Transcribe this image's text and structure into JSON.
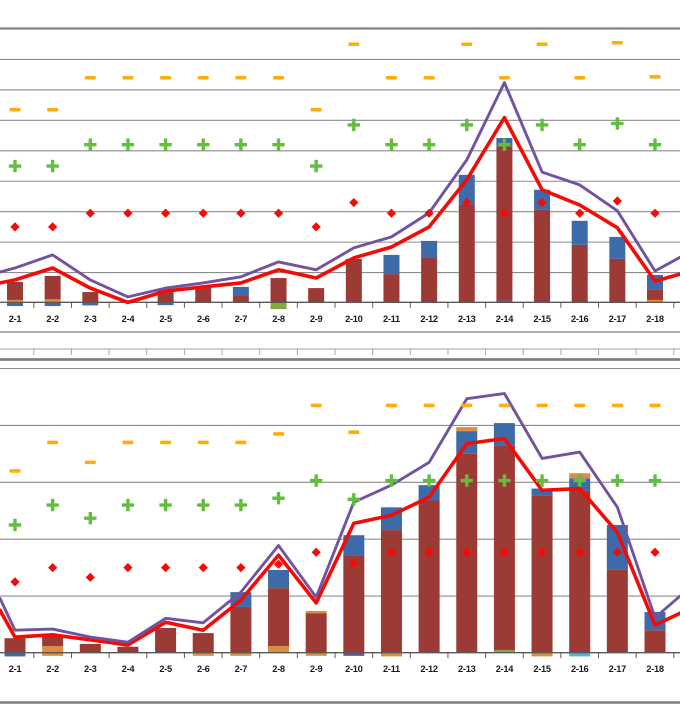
{
  "page": {
    "background": "#FFFFFF",
    "description": "Cropped view of two stacked-column / line combo charts, one above the other; y-axis value labels are cropped out of view."
  },
  "colors": {
    "bar_maroon": "#9C3A36",
    "bar_blue": "#3D6AA8",
    "bar_orange": "#DC8D3E",
    "bar_green": "#84A93F",
    "bar_purple": "#6B5294",
    "bar_teal": "#4FB6D8",
    "line_red": "#F50B06",
    "line_purple": "#71549F",
    "marker_orange_dash": "#FFAF04",
    "marker_green_plus": "#62BE3C",
    "marker_red_diamond": "#F50B06",
    "gridline": "#8C8C8C",
    "axis": "#595959",
    "frame": "#7F7F7F",
    "label": "#1A1A1A"
  },
  "chart_data": [
    {
      "id": "top-chart",
      "type": "bar",
      "subtype": "stacked-columns-with-lines-and-scatter-markers",
      "title": "",
      "xlabel": "",
      "ylabel": "",
      "note": "y values are in gridline units (numeric axis labels cropped out of screenshot); bars are stacked segments, negatives hang below the axis",
      "categories": [
        "2-1",
        "2-2",
        "2-3",
        "2-4",
        "2-5",
        "2-6",
        "2-7",
        "2-8",
        "2-9",
        "2-10",
        "2-11",
        "2-12",
        "2-13",
        "2-14",
        "2-15",
        "2-16",
        "2-17",
        "2-18"
      ],
      "ylim_units": [
        0,
        9
      ],
      "gridline_rows": 10,
      "grid": true,
      "legend": "not visible (cropped)",
      "series": [
        {
          "name": "orange-dash-markers",
          "type": "scatter",
          "marker": "dash",
          "color": "#FFAF04",
          "values": [
            6.35,
            6.35,
            7.4,
            7.4,
            7.4,
            7.4,
            7.4,
            7.4,
            6.35,
            8.5,
            7.4,
            7.4,
            8.5,
            7.4,
            8.5,
            7.4,
            8.55,
            7.43
          ]
        },
        {
          "name": "green-plus-markers",
          "type": "scatter",
          "marker": "plus",
          "color": "#62BE3C",
          "values": [
            4.5,
            4.5,
            5.2,
            5.2,
            5.2,
            5.2,
            5.2,
            5.2,
            4.5,
            5.85,
            5.2,
            5.2,
            5.85,
            5.2,
            5.85,
            5.2,
            5.9,
            5.2
          ]
        },
        {
          "name": "red-diamond-markers",
          "type": "scatter",
          "marker": "diamond",
          "color": "#F50B06",
          "values": [
            2.5,
            2.5,
            2.95,
            2.95,
            2.95,
            2.95,
            2.95,
            2.95,
            2.5,
            3.3,
            2.95,
            2.95,
            3.3,
            2.95,
            3.3,
            2.95,
            3.35,
            2.95
          ]
        },
        {
          "name": "red-line",
          "type": "line",
          "color": "#F50B06",
          "edge_left": 0.66,
          "edge_right": 0.95,
          "values": [
            0.76,
            1.15,
            0.49,
            0.02,
            0.39,
            0.53,
            0.66,
            1.09,
            0.82,
            1.48,
            1.84,
            2.5,
            4.05,
            6.09,
            3.72,
            3.22,
            2.47,
            0.72
          ]
        },
        {
          "name": "purple-line",
          "type": "line",
          "color": "#71549F",
          "edge_left": 1.02,
          "edge_right": 1.5,
          "values": [
            1.15,
            1.58,
            0.76,
            0.2,
            0.49,
            0.66,
            0.86,
            1.35,
            1.09,
            1.81,
            2.17,
            2.96,
            4.7,
            7.24,
            4.3,
            3.88,
            3.03,
            1.05
          ]
        },
        {
          "name": "stacked-bars",
          "type": "bar",
          "segments": [
            [
              [
                "blue",
                -0.1,
                0
              ],
              [
                "orange",
                0,
                0.1
              ],
              [
                "maroon",
                0.1,
                0.69
              ]
            ],
            [
              [
                "blue",
                -0.1,
                0
              ],
              [
                "orange",
                0,
                0.12
              ],
              [
                "maroon",
                0.12,
                0.89
              ]
            ],
            [
              [
                "blue",
                -0.08,
                0
              ],
              [
                "maroon",
                0,
                0.36
              ]
            ],
            [],
            [
              [
                "blue",
                -0.07,
                0
              ],
              [
                "maroon",
                0,
                0.43
              ]
            ],
            [
              [
                "maroon",
                0,
                0.49
              ]
            ],
            [
              [
                "maroon",
                0,
                0.26
              ],
              [
                "blue",
                0.26,
                0.53
              ]
            ],
            [
              [
                "green",
                -0.2,
                0
              ],
              [
                "maroon",
                0,
                0.82
              ]
            ],
            [
              [
                "maroon",
                0,
                0.49
              ]
            ],
            [
              [
                "maroon",
                0,
                1.45
              ]
            ],
            [
              [
                "maroon",
                0,
                0.95
              ],
              [
                "blue",
                0.95,
                1.58
              ]
            ],
            [
              [
                "maroon",
                0,
                1.48
              ],
              [
                "blue",
                1.48,
                2.04
              ]
            ],
            [
              [
                "maroon",
                0,
                3.22
              ],
              [
                "blue",
                3.22,
                4.21
              ]
            ],
            [
              [
                "purple",
                0,
                0.08
              ],
              [
                "maroon",
                0.08,
                5.15
              ],
              [
                "blue",
                5.15,
                5.42
              ]
            ],
            [
              [
                "maroon",
                0,
                3.06
              ],
              [
                "blue",
                3.06,
                3.72
              ]
            ],
            [
              [
                "maroon",
                0,
                1.91
              ],
              [
                "blue",
                1.91,
                2.7
              ]
            ],
            [
              [
                "maroon",
                0,
                1.45
              ],
              [
                "blue",
                1.45,
                2.17
              ]
            ],
            [
              [
                "orange",
                0,
                0.1
              ],
              [
                "maroon",
                0.1,
                0.43
              ],
              [
                "blue",
                0.43,
                0.92
              ]
            ]
          ]
        }
      ]
    },
    {
      "id": "bottom-chart",
      "type": "bar",
      "subtype": "stacked-columns-with-lines-and-scatter-markers",
      "title": "",
      "xlabel": "",
      "ylabel": "",
      "note": "y values are in gridline units (numeric axis labels cropped out of screenshot)",
      "categories": [
        "2-1",
        "2-2",
        "2-3",
        "2-4",
        "2-5",
        "2-6",
        "2-7",
        "2-8",
        "2-9",
        "2-10",
        "2-11",
        "2-12",
        "2-13",
        "2-14",
        "2-15",
        "2-16",
        "2-17",
        "2-18"
      ],
      "ylim_units": [
        0,
        5
      ],
      "gridline_rows": 6,
      "grid": true,
      "legend": "not visible (cropped)",
      "series": [
        {
          "name": "orange-dash-markers",
          "type": "scatter",
          "marker": "dash",
          "color": "#FFAF04",
          "values": [
            3.2,
            3.7,
            3.35,
            3.7,
            3.7,
            3.7,
            3.7,
            3.85,
            4.35,
            3.88,
            4.35,
            4.35,
            4.35,
            4.35,
            4.35,
            4.35,
            4.35,
            4.35
          ]
        },
        {
          "name": "green-plus-markers",
          "type": "scatter",
          "marker": "plus",
          "color": "#62BE3C",
          "values": [
            2.25,
            2.6,
            2.37,
            2.6,
            2.6,
            2.6,
            2.6,
            2.72,
            3.03,
            2.7,
            3.03,
            3.03,
            3.03,
            3.03,
            3.03,
            3.03,
            3.03,
            3.03
          ]
        },
        {
          "name": "red-diamond-markers",
          "type": "scatter",
          "marker": "diamond",
          "color": "#F50B06",
          "values": [
            1.25,
            1.5,
            1.33,
            1.5,
            1.5,
            1.5,
            1.5,
            1.56,
            1.77,
            1.58,
            1.77,
            1.77,
            1.77,
            1.77,
            1.77,
            1.77,
            1.77,
            1.77
          ]
        },
        {
          "name": "red-line",
          "type": "line",
          "color": "#F50B06",
          "edge_left": 0.75,
          "edge_right": 0.7,
          "values": [
            0.28,
            0.32,
            0.23,
            0.14,
            0.54,
            0.4,
            0.93,
            1.72,
            0.88,
            2.28,
            2.42,
            2.74,
            3.68,
            3.77,
            2.86,
            2.89,
            2.12,
            0.49
          ]
        },
        {
          "name": "purple-line",
          "type": "line",
          "color": "#71549F",
          "edge_left": 0.96,
          "edge_right": 1.0,
          "values": [
            0.4,
            0.42,
            0.28,
            0.19,
            0.61,
            0.53,
            1.07,
            1.89,
            0.98,
            2.65,
            2.95,
            3.35,
            4.47,
            4.56,
            3.42,
            3.53,
            2.56,
            0.62
          ]
        },
        {
          "name": "stacked-bars",
          "type": "bar",
          "segments": [
            [
              [
                "blue",
                -0.06,
                0
              ],
              [
                "maroon",
                0,
                0.26
              ]
            ],
            [
              [
                "orange",
                -0.05,
                0.12
              ],
              [
                "maroon",
                0.12,
                0.3
              ]
            ],
            [
              [
                "maroon",
                0,
                0.16
              ]
            ],
            [
              [
                "maroon",
                0,
                0.11
              ]
            ],
            [
              [
                "maroon",
                0,
                0.44
              ]
            ],
            [
              [
                "orange",
                -0.05,
                0
              ],
              [
                "maroon",
                0,
                0.35
              ]
            ],
            [
              [
                "orange",
                -0.05,
                0
              ],
              [
                "maroon",
                0,
                0.81
              ],
              [
                "blue",
                0.81,
                1.07
              ]
            ],
            [
              [
                "orange",
                0,
                0.12
              ],
              [
                "maroon",
                0.12,
                1.14
              ],
              [
                "blue",
                1.14,
                1.46
              ]
            ],
            [
              [
                "orange",
                -0.05,
                0
              ],
              [
                "maroon",
                0,
                0.7
              ],
              [
                "orange",
                0.7,
                0.74
              ]
            ],
            [
              [
                "purple",
                -0.05,
                0
              ],
              [
                "maroon",
                0,
                1.72
              ],
              [
                "blue",
                1.72,
                2.07
              ]
            ],
            [
              [
                "orange",
                -0.06,
                0
              ],
              [
                "maroon",
                0,
                2.16
              ],
              [
                "blue",
                2.16,
                2.56
              ]
            ],
            [
              [
                "maroon",
                0,
                2.68
              ],
              [
                "blue",
                2.68,
                2.95
              ]
            ],
            [
              [
                "maroon",
                0,
                3.5
              ],
              [
                "blue",
                3.5,
                3.9
              ],
              [
                "orange",
                3.9,
                3.97
              ]
            ],
            [
              [
                "green",
                0,
                0.05
              ],
              [
                "maroon",
                0.05,
                3.65
              ],
              [
                "blue",
                3.65,
                4.04
              ]
            ],
            [
              [
                "orange",
                -0.06,
                0
              ],
              [
                "maroon",
                0,
                2.77
              ],
              [
                "blue",
                2.77,
                2.89
              ]
            ],
            [
              [
                "teal",
                -0.06,
                0
              ],
              [
                "maroon",
                0,
                2.86
              ],
              [
                "blue",
                2.86,
                3.07
              ],
              [
                "orange",
                3.07,
                3.16
              ]
            ],
            [
              [
                "maroon",
                0,
                1.46
              ],
              [
                "blue",
                1.46,
                2.25
              ]
            ],
            [
              [
                "maroon",
                0,
                0.4
              ],
              [
                "blue",
                0.4,
                0.72
              ]
            ]
          ]
        }
      ]
    }
  ]
}
